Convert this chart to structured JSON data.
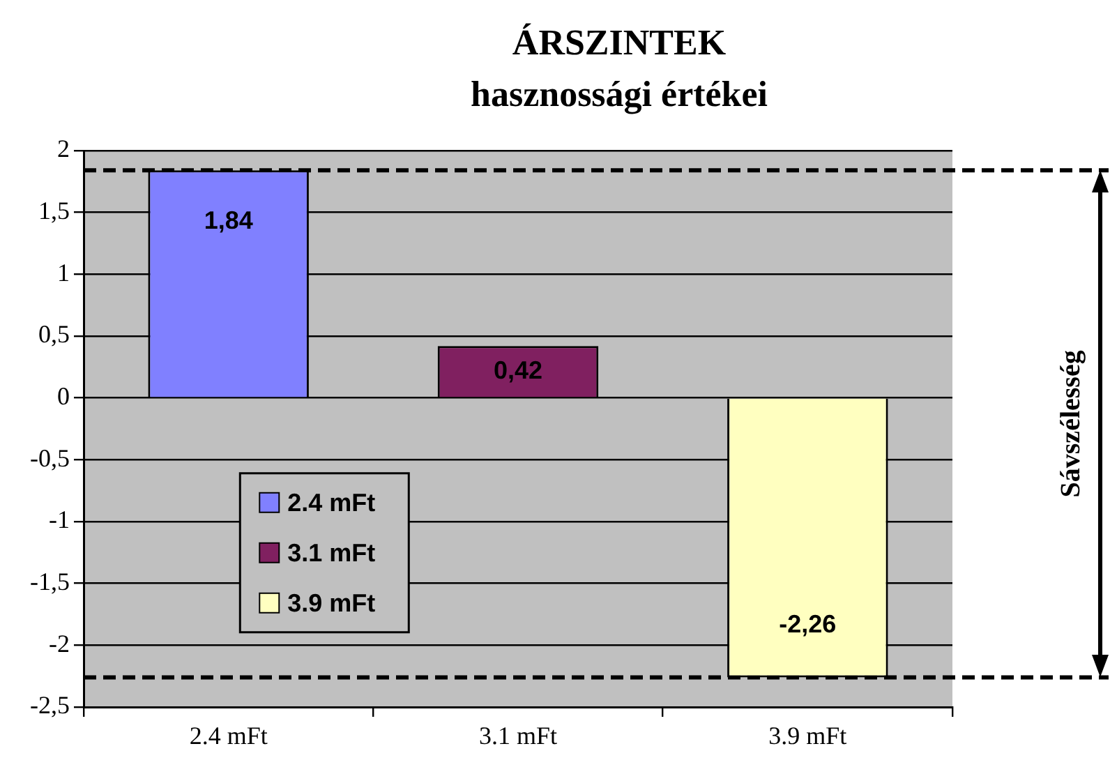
{
  "chart_data": {
    "type": "bar",
    "title": "ÁRSZINTEK",
    "subtitle": "hasznossági értékei",
    "categories": [
      "2.4 mFt",
      "3.1 mFt",
      "3.9 mFt"
    ],
    "series": [
      {
        "name": "2.4 mFt",
        "color": "#8080ff",
        "values": [
          1.84,
          null,
          null
        ],
        "value_labels": [
          "1,84",
          null,
          null
        ]
      },
      {
        "name": "3.1 mFt",
        "color": "#802060",
        "values": [
          null,
          0.42,
          null
        ],
        "value_labels": [
          null,
          "0,42",
          null
        ]
      },
      {
        "name": "3.9 mFt",
        "color": "#ffffc0",
        "values": [
          null,
          null,
          -2.26
        ],
        "value_labels": [
          null,
          null,
          "-2,26"
        ]
      }
    ],
    "ylim": [
      -2.5,
      2
    ],
    "yticks": [
      {
        "value": -2.5,
        "label": "-2,5"
      },
      -2,
      {
        "value": -1.5,
        "label": "-1,5"
      },
      -1,
      {
        "value": -0.5,
        "label": "-0,5"
      },
      0,
      {
        "value": 0.5,
        "label": "0,5"
      },
      1,
      {
        "value": 1.5,
        "label": "1,5"
      },
      2
    ],
    "grid": "y",
    "legend": "left",
    "ref_lines": [
      {
        "axis": "y",
        "value": 1.84,
        "line_style": "dashed"
      },
      {
        "axis": "y",
        "value": -2.26,
        "line_style": "dashed"
      }
    ],
    "annotations": [
      "Sávszélesség"
    ]
  }
}
